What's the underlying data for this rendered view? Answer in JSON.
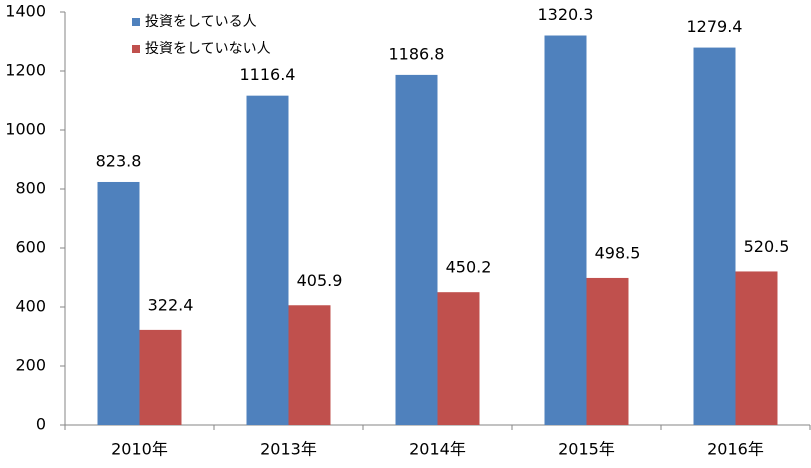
{
  "chart_data": {
    "type": "bar",
    "categories": [
      "2010年",
      "2013年",
      "2014年",
      "2015年",
      "2016年"
    ],
    "series": [
      {
        "name": "投資をしている人",
        "color": "#4f81bd",
        "values": [
          823.8,
          1116.4,
          1186.8,
          1320.3,
          1279.4
        ]
      },
      {
        "name": "投資をしていない人",
        "color": "#c0504d",
        "values": [
          322.4,
          405.9,
          450.2,
          498.5,
          520.5
        ]
      }
    ],
    "ylim": [
      0,
      1400
    ],
    "yticks": [
      0,
      200,
      400,
      600,
      800,
      1000,
      1200,
      1400
    ],
    "grid": false,
    "legend": "top-left"
  }
}
